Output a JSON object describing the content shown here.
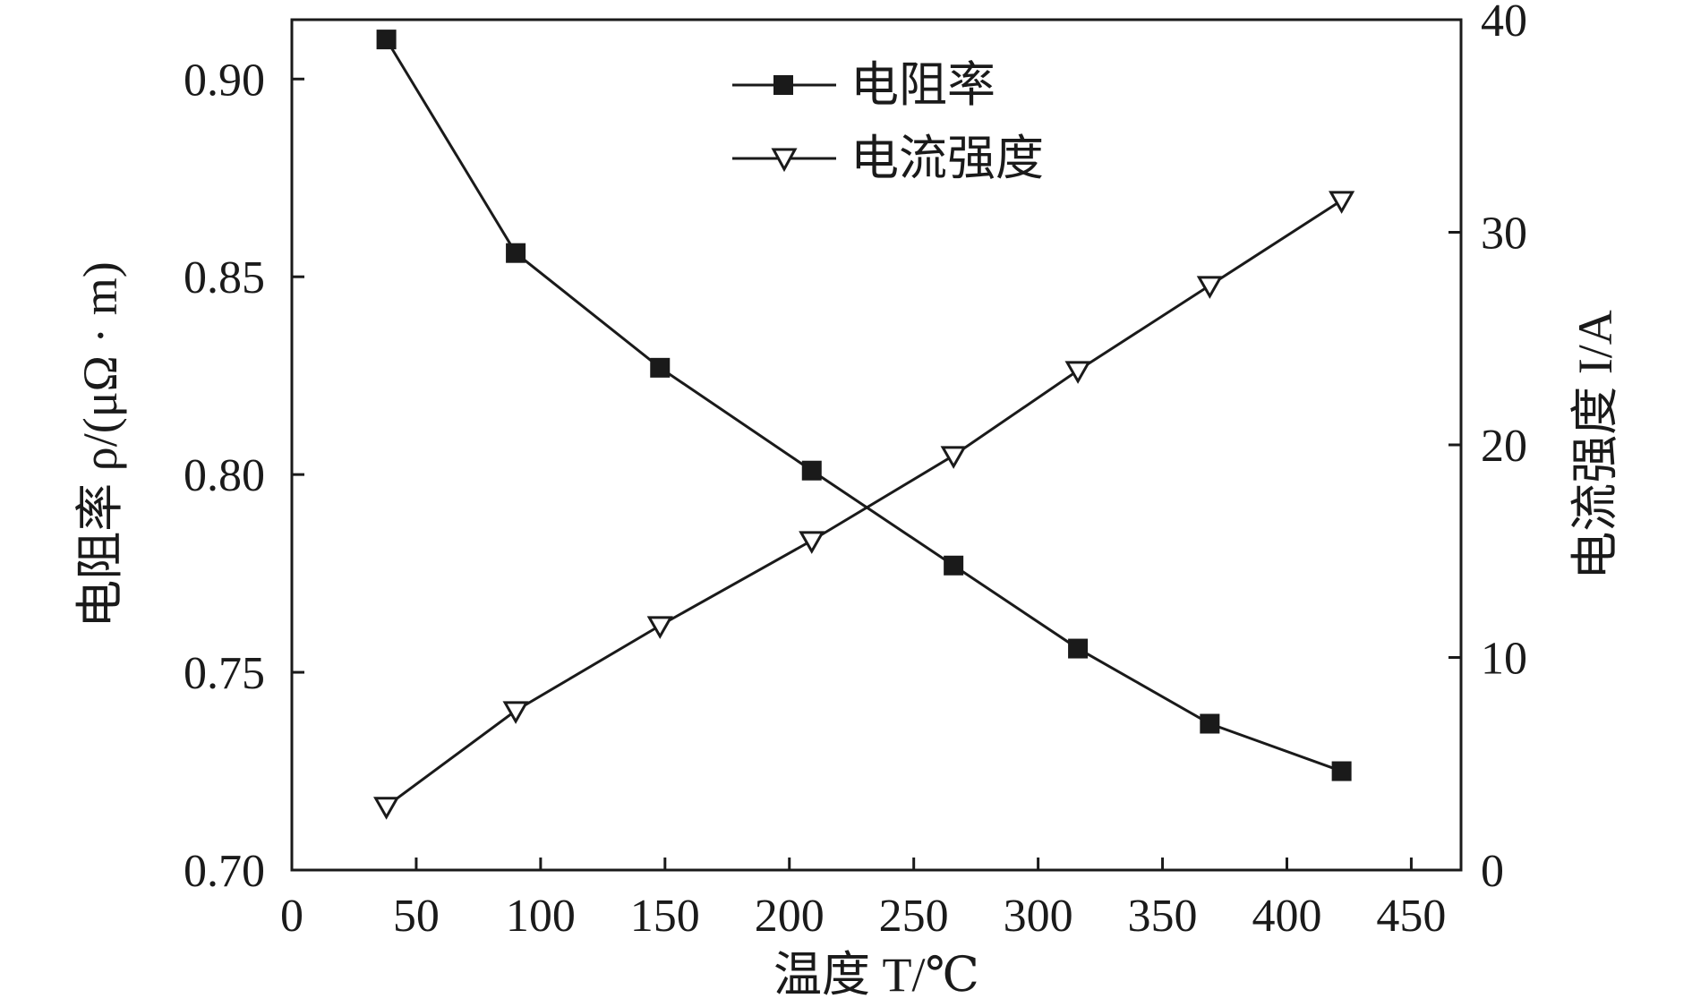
{
  "chart_data": {
    "type": "line",
    "x": [
      38,
      90,
      148,
      209,
      266,
      316,
      369,
      422
    ],
    "xlabel": "温度 T/℃",
    "xlim": [
      0,
      470
    ],
    "xticks": [
      "0",
      "50",
      "100",
      "150",
      "200",
      "250",
      "300",
      "350",
      "400",
      "450"
    ],
    "ylabel_left": "电阻率 ρ/(μΩ · m)",
    "ylim_left": [
      0.7,
      0.915
    ],
    "yticks_left": [
      "0.70",
      "0.75",
      "0.80",
      "0.85",
      "0.90"
    ],
    "ylabel_right": "电流强度 I/A",
    "ylim_right": [
      0,
      40
    ],
    "yticks_right": [
      "0",
      "10",
      "20",
      "30",
      "40"
    ],
    "grid": false,
    "legend_position": "top-center",
    "series": [
      {
        "name": "电阻率",
        "axis": "left",
        "marker": "filled-square",
        "values": [
          0.91,
          0.856,
          0.827,
          0.801,
          0.777,
          0.756,
          0.737,
          0.725
        ]
      },
      {
        "name": "电流强度",
        "axis": "right",
        "marker": "open-down-triangle",
        "values": [
          3.0,
          7.5,
          11.5,
          15.5,
          19.5,
          23.5,
          27.5,
          31.5
        ]
      }
    ]
  },
  "colors": {
    "ink": "#1a1a1a",
    "background": "#ffffff"
  }
}
